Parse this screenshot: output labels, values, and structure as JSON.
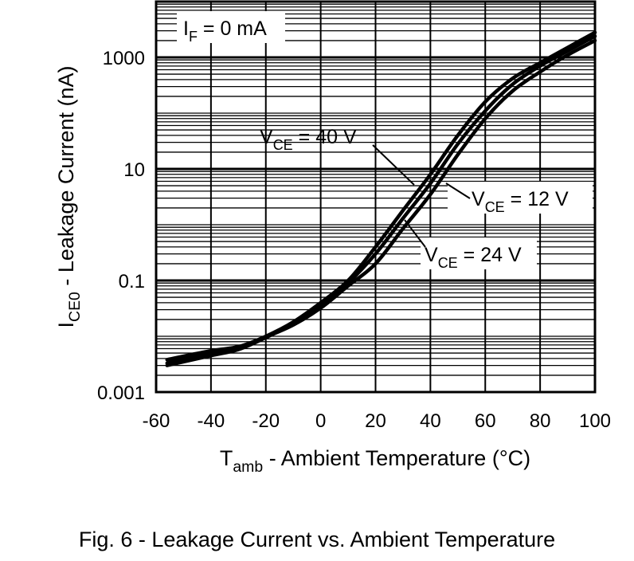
{
  "chart_data": {
    "type": "line",
    "x_scale": "linear",
    "y_scale": "log",
    "xlim": [
      -60,
      100
    ],
    "ylim": [
      0.001,
      10000
    ],
    "x_ticks": [
      -60,
      -40,
      -20,
      0,
      20,
      40,
      60,
      80,
      100
    ],
    "x_tick_labels": [
      "-60",
      "-40",
      "-20",
      "0",
      "20",
      "40",
      "60",
      "80",
      "100"
    ],
    "y_ticks": [
      0.001,
      0.1,
      10,
      1000
    ],
    "y_tick_labels": [
      "0.001",
      "0.1",
      "10",
      "1000"
    ],
    "grid": true,
    "xlabel": {
      "main": "T",
      "sub": "amb",
      "rest": " - Ambient Temperature (°C)"
    },
    "ylabel": {
      "main": "I",
      "sub": "CE0",
      "rest": " - Leakage Current (nA)"
    },
    "condition": {
      "main": "I",
      "sub": "F",
      "rest": " = 0 mA"
    },
    "series": [
      {
        "name": "VCE = 40 V",
        "label": {
          "main": "V",
          "sub": "CE",
          "rest": " = 40 V"
        },
        "x": [
          -56,
          -40,
          -30,
          -20,
          -10,
          0,
          10,
          20,
          30,
          40,
          50,
          60,
          70,
          80,
          90,
          100
        ],
        "y": [
          0.0038,
          0.0055,
          0.0065,
          0.01,
          0.018,
          0.04,
          0.1,
          0.4,
          1.8,
          8,
          40,
          160,
          420,
          800,
          1500,
          2800
        ]
      },
      {
        "name": "VCE = 12 V",
        "label": {
          "main": "V",
          "sub": "CE",
          "rest": " = 12 V"
        },
        "x": [
          -56,
          -40,
          -30,
          -20,
          -10,
          0,
          10,
          20,
          30,
          40,
          50,
          60,
          70,
          80,
          90,
          100
        ],
        "y": [
          0.003,
          0.0045,
          0.0058,
          0.0095,
          0.017,
          0.035,
          0.09,
          0.3,
          1.3,
          5.5,
          28,
          110,
          330,
          700,
          1300,
          2400
        ]
      },
      {
        "name": "VCE = 24 V",
        "label": {
          "main": "V",
          "sub": "CE",
          "rest": " = 24 V"
        },
        "x": [
          -56,
          -40,
          -30,
          -20,
          -10,
          0,
          10,
          20,
          30,
          40,
          50,
          60,
          70,
          80,
          90,
          100
        ],
        "y": [
          0.0033,
          0.005,
          0.0061,
          0.0097,
          0.016,
          0.032,
          0.08,
          0.2,
          0.85,
          3.5,
          18,
          80,
          250,
          550,
          1100,
          2000
        ]
      }
    ],
    "caption": "Fig. 6 - Leakage Current vs. Ambient Temperature"
  }
}
